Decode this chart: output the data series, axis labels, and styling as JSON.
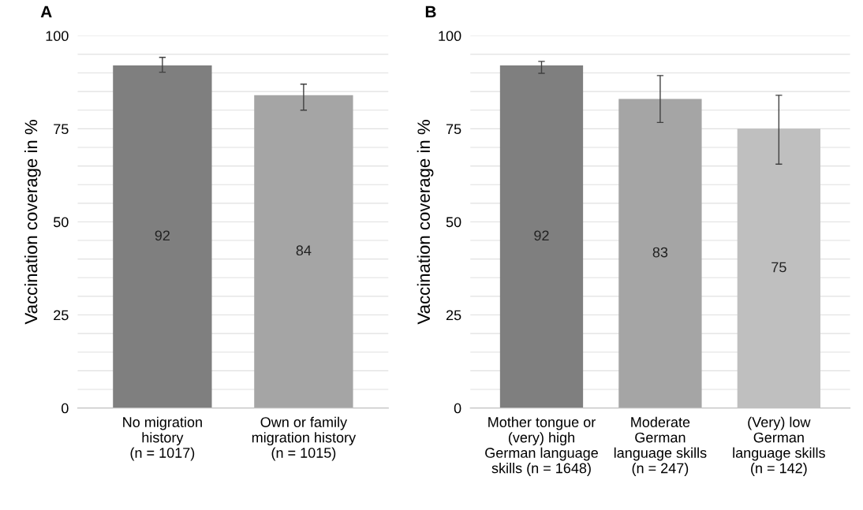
{
  "chart_data": [
    {
      "type": "bar",
      "title": "A",
      "ylabel": "Vaccination coverage in %",
      "categories": [
        "No migration\nhistory\n(n = 1017)",
        "Own or family\nmigration history\n(n = 1015)"
      ],
      "values": [
        92,
        84
      ],
      "colors": [
        "#7f7f7f",
        "#a5a5a5"
      ],
      "errors": [
        [
          90.2,
          94.2
        ],
        [
          80.0,
          87.0
        ]
      ],
      "data_labels": true,
      "ylim": [
        0,
        100
      ],
      "yticks": [
        0,
        {
          "value": 5,
          "label": null
        },
        {
          "value": 10,
          "label": null
        },
        {
          "value": 15,
          "label": null
        },
        {
          "value": 20,
          "label": null
        },
        25,
        {
          "value": 30,
          "label": null
        },
        {
          "value": 35,
          "label": null
        },
        {
          "value": 40,
          "label": null
        },
        {
          "value": 45,
          "label": null
        },
        50,
        {
          "value": 55,
          "label": null
        },
        {
          "value": 60,
          "label": null
        },
        {
          "value": 65,
          "label": null
        },
        {
          "value": 70,
          "label": null
        },
        75,
        {
          "value": 80,
          "label": null
        },
        {
          "value": 85,
          "label": null
        },
        {
          "value": 90,
          "label": null
        },
        {
          "value": 95,
          "label": null
        },
        100
      ],
      "grid": "y"
    },
    {
      "type": "bar",
      "title": "B",
      "ylabel": "Vaccination coverage in %",
      "categories": [
        "Mother tongue or\n(very) high\nGerman language\nskills (n = 1648)",
        "Moderate\nGerman\nlanguage skills\n(n = 247)",
        "(Very) low\nGerman\nlanguage skills\n(n = 142)"
      ],
      "values": [
        92,
        83,
        75
      ],
      "colors": [
        "#7f7f7f",
        "#a5a5a5",
        "#bfbfbf"
      ],
      "errors": [
        [
          89.9,
          93.1
        ],
        [
          76.7,
          89.3
        ],
        [
          65.5,
          84.0
        ]
      ],
      "data_labels": true,
      "ylim": [
        0,
        100
      ],
      "yticks": [
        0,
        {
          "value": 5,
          "label": null
        },
        {
          "value": 10,
          "label": null
        },
        {
          "value": 15,
          "label": null
        },
        {
          "value": 20,
          "label": null
        },
        25,
        {
          "value": 30,
          "label": null
        },
        {
          "value": 35,
          "label": null
        },
        {
          "value": 40,
          "label": null
        },
        {
          "value": 45,
          "label": null
        },
        50,
        {
          "value": 55,
          "label": null
        },
        {
          "value": 60,
          "label": null
        },
        {
          "value": 65,
          "label": null
        },
        {
          "value": 70,
          "label": null
        },
        75,
        {
          "value": 80,
          "label": null
        },
        {
          "value": 85,
          "label": null
        },
        {
          "value": 90,
          "label": null
        },
        {
          "value": 95,
          "label": null
        },
        100
      ],
      "grid": "y"
    }
  ]
}
